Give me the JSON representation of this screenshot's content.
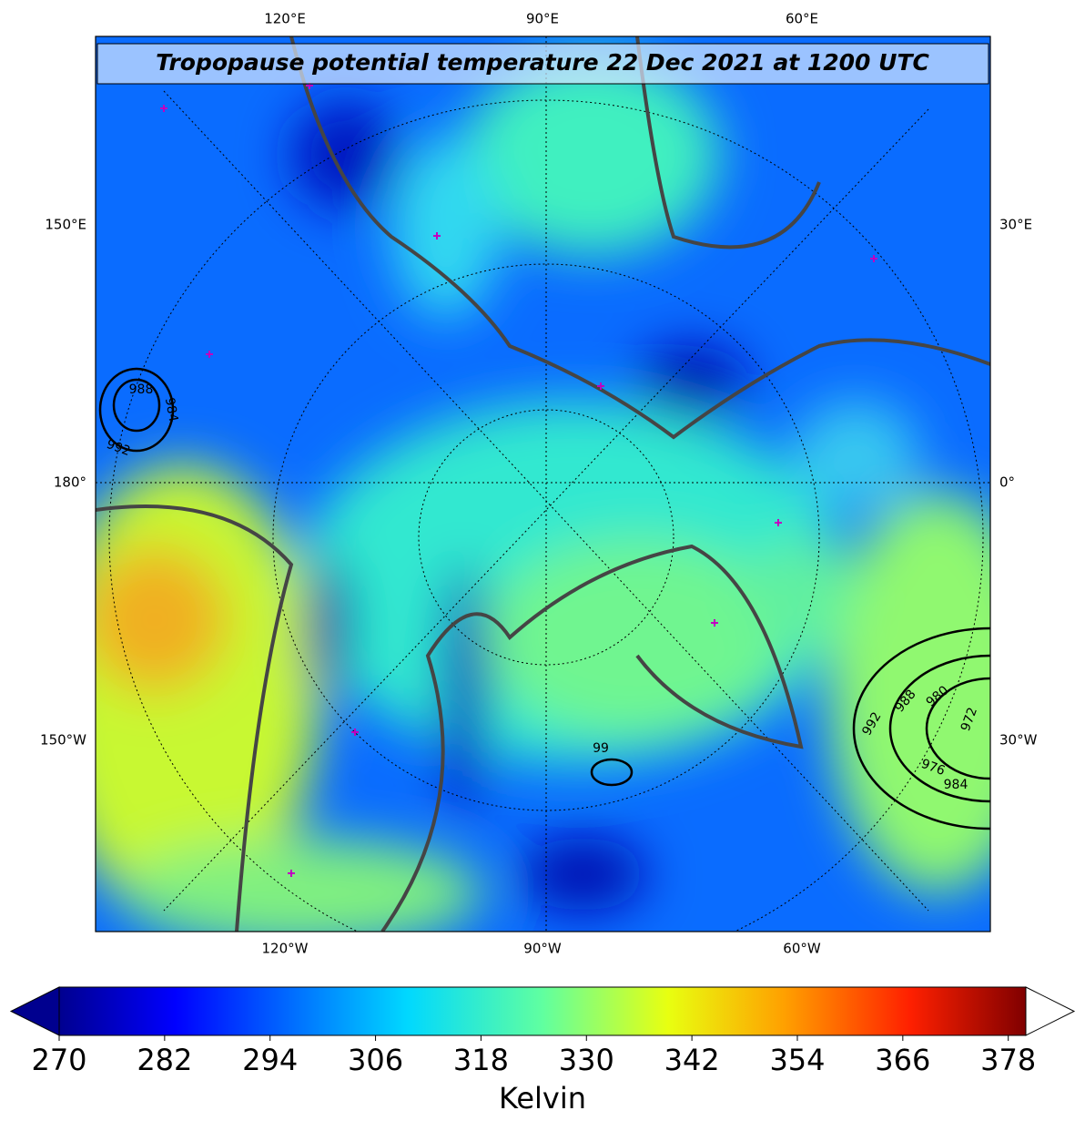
{
  "map": {
    "title": "Tropopause potential temperature 22 Dec 2021 at 1200 UTC",
    "top_labels": [
      "120°E",
      "90°E",
      "60°E"
    ],
    "left_labels": [
      "150°E",
      "180°",
      "150°W"
    ],
    "right_labels": [
      "30°E",
      "0°",
      "30°W"
    ],
    "bottom_labels": [
      "120°W",
      "90°W",
      "60°W"
    ],
    "pressure_labels": [
      "988",
      "984",
      "992",
      "992",
      "988",
      "980",
      "972",
      "976",
      "984",
      "99"
    ]
  },
  "colorbar": {
    "label": "Kelvin",
    "range": [
      270,
      380
    ],
    "ticks": [
      270,
      282,
      294,
      306,
      318,
      330,
      342,
      354,
      366,
      378
    ]
  }
}
